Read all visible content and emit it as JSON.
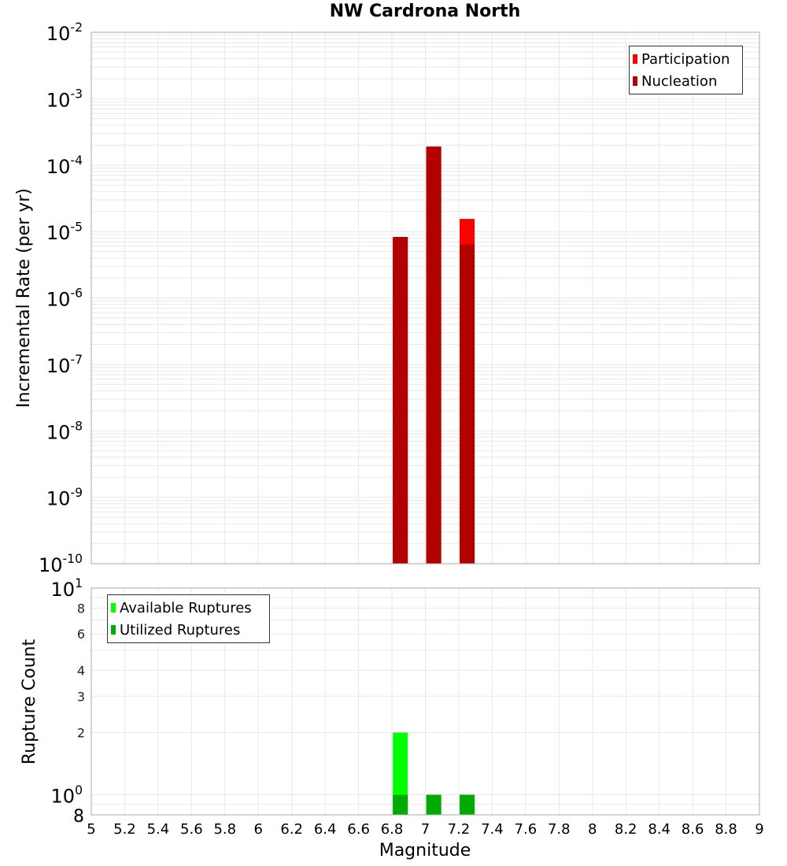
{
  "title": "NW Cardrona North",
  "top_plot": {
    "ylabel": "Incremental Rate (per yr)",
    "yticks": [
      "10^-2",
      "10^-3",
      "10^-4",
      "10^-5",
      "10^-6",
      "10^-7",
      "10^-8",
      "10^-9",
      "10^-10"
    ],
    "legend": [
      {
        "label": "Participation",
        "color": "#ff0000"
      },
      {
        "label": "Nucleation",
        "color": "#b20000"
      }
    ]
  },
  "bottom_plot": {
    "ylabel": "Rupture Count",
    "yticks": [
      "10^1",
      "8",
      "6",
      "4",
      "3",
      "2",
      "10^0",
      "8"
    ],
    "legend": [
      {
        "label": "Available Ruptures",
        "color": "#00ff00"
      },
      {
        "label": "Utilized Ruptures",
        "color": "#00aa00"
      }
    ]
  },
  "xlabel": "Magnitude",
  "xticks": [
    "5",
    "5.2",
    "5.4",
    "5.6",
    "5.8",
    "6",
    "6.2",
    "6.4",
    "6.6",
    "6.8",
    "7",
    "7.2",
    "7.4",
    "7.6",
    "7.8",
    "8",
    "8.2",
    "8.4",
    "8.6",
    "8.8",
    "9"
  ],
  "chart_data": [
    {
      "type": "bar",
      "title": "NW Cardrona North",
      "xlabel": "Magnitude",
      "ylabel": "Incremental Rate (per yr)",
      "yscale": "log",
      "xlim": [
        5,
        9
      ],
      "ylim": [
        1e-10,
        0.01
      ],
      "grid": true,
      "legend_position": "top-right",
      "x": [
        6.85,
        7.05,
        7.25
      ],
      "series": [
        {
          "name": "Participation",
          "color": "#ff0000",
          "values": [
            8.3e-06,
            0.00019,
            1.55e-05
          ]
        },
        {
          "name": "Nucleation",
          "color": "#b20000",
          "values": [
            8.3e-06,
            0.00019,
            6.4e-06
          ]
        }
      ]
    },
    {
      "type": "bar",
      "title": "",
      "xlabel": "Magnitude",
      "ylabel": "Rupture Count",
      "yscale": "log",
      "xlim": [
        5,
        9
      ],
      "ylim": [
        0.8,
        10
      ],
      "grid": true,
      "legend_position": "top-left",
      "x": [
        6.85,
        7.05,
        7.25
      ],
      "series": [
        {
          "name": "Available Ruptures",
          "color": "#00ff00",
          "values": [
            2,
            1,
            1
          ]
        },
        {
          "name": "Utilized Ruptures",
          "color": "#00aa00",
          "values": [
            1,
            1,
            1
          ]
        }
      ]
    }
  ]
}
